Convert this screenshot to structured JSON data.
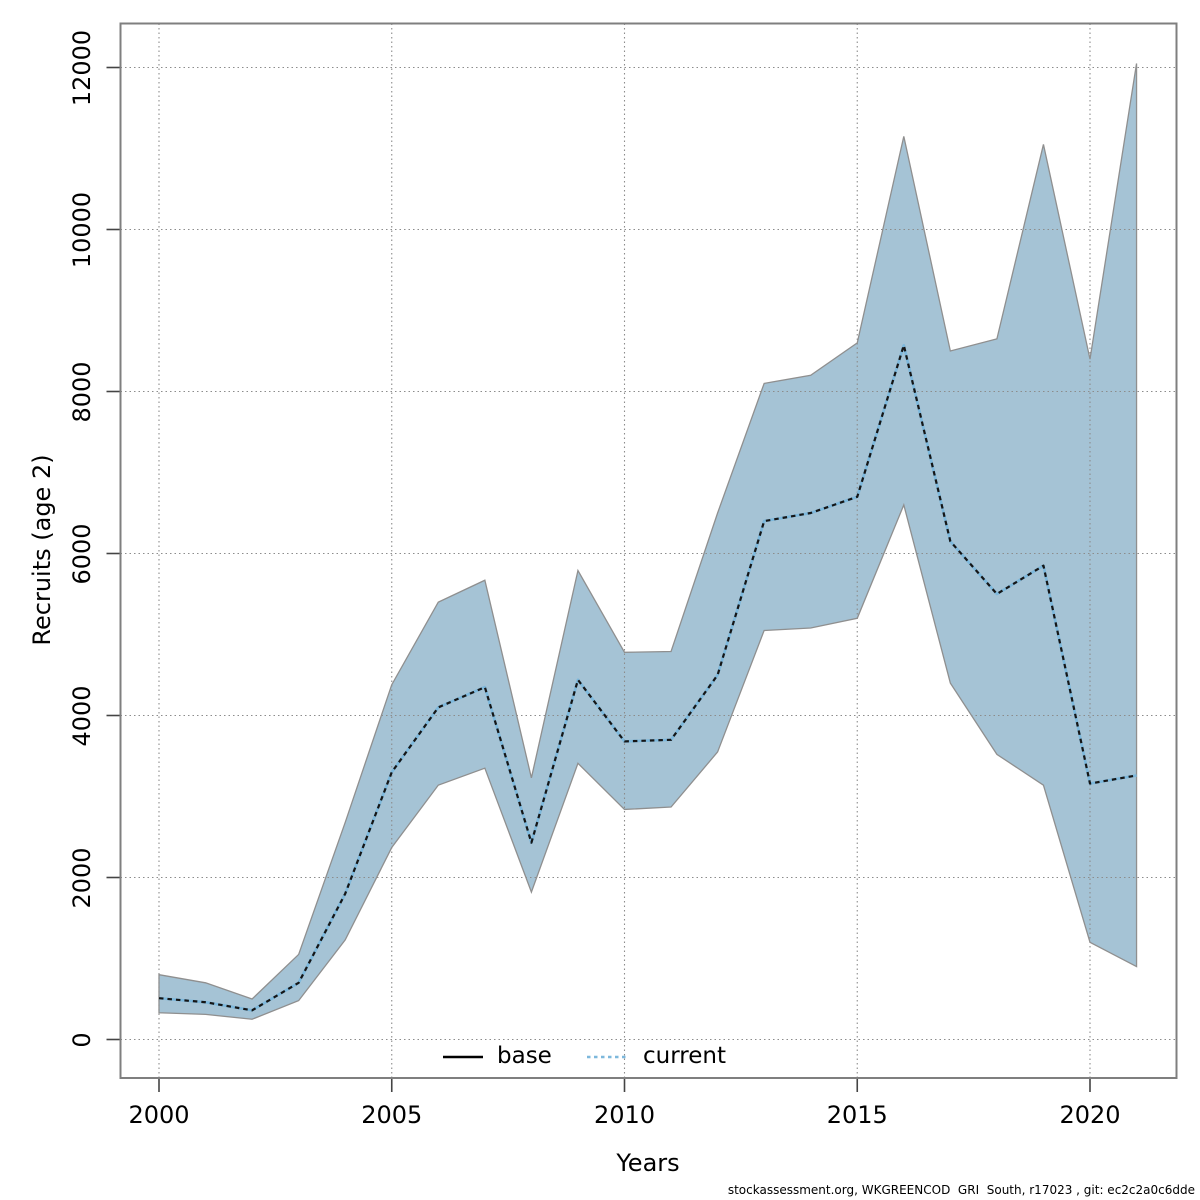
{
  "chart_data": {
    "type": "area",
    "title": "",
    "xlabel": "Years",
    "ylabel": "Recruits (age 2)",
    "x": [
      2000,
      2001,
      2002,
      2003,
      2004,
      2005,
      2006,
      2007,
      2008,
      2009,
      2010,
      2011,
      2012,
      2013,
      2014,
      2015,
      2016,
      2017,
      2018,
      2019,
      2020,
      2021
    ],
    "series": [
      {
        "name": "base",
        "style": "solid",
        "color": "#000000",
        "values": [
          510,
          460,
          360,
          700,
          1800,
          3300,
          4100,
          4350,
          2430,
          4440,
          3680,
          3700,
          4500,
          6400,
          6500,
          6700,
          8570,
          6150,
          5500,
          5850,
          3160,
          3260
        ]
      },
      {
        "name": "current",
        "style": "dotted",
        "color": "#7db8dc",
        "values": [
          510,
          460,
          360,
          700,
          1800,
          3300,
          4100,
          4350,
          2430,
          4440,
          3680,
          3700,
          4500,
          6400,
          6500,
          6700,
          8570,
          6150,
          5500,
          5850,
          3160,
          3260
        ]
      }
    ],
    "band": {
      "name": "confidence-band",
      "low": [
        330,
        310,
        250,
        480,
        1230,
        2370,
        3140,
        3350,
        1820,
        3410,
        2840,
        2870,
        3550,
        5050,
        5080,
        5200,
        6600,
        4400,
        3520,
        3140,
        1200,
        900
      ],
      "high": [
        800,
        700,
        500,
        1050,
        2680,
        4380,
        5400,
        5670,
        3230,
        5790,
        4780,
        4790,
        6500,
        8100,
        8200,
        8600,
        11150,
        8500,
        8650,
        11050,
        8400,
        12050
      ]
    },
    "x_ticks": [
      2000,
      2005,
      2010,
      2015,
      2020
    ],
    "y_ticks": [
      0,
      2000,
      4000,
      6000,
      8000,
      10000,
      12000
    ],
    "xlim": [
      2000,
      2021
    ],
    "ylim": [
      0,
      12000
    ],
    "grid": "dotted",
    "legend_position": "bottom-center-inside",
    "colors": {
      "band_fill": "#a5c3d5",
      "band_edge": "#8f8f8f",
      "current_line": "#7db8dc",
      "dash_overlay": "#151515",
      "grid": "#8c8c8c",
      "border": "#7f7f7f"
    }
  },
  "legend": {
    "items": [
      {
        "label": "base",
        "style": "solid",
        "color": "#000000"
      },
      {
        "label": "current",
        "style": "dotted",
        "color": "#7db8dc"
      }
    ]
  },
  "footer": {
    "text": "stockassessment.org, WKGREENCOD  GRI  South, r17023 , git: ec2c2a0c6dde"
  }
}
